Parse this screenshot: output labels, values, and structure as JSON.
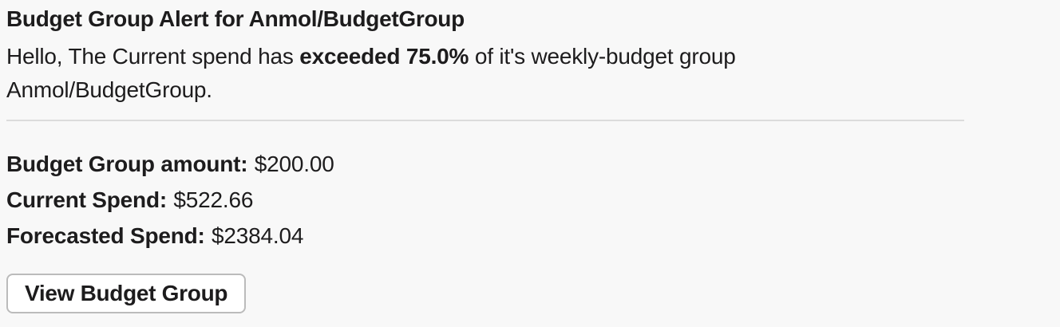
{
  "colors": {
    "background": "#f8f8f8",
    "text": "#1d1c1d",
    "divider": "#dcdcdc",
    "button_border": "#bbbbbb",
    "button_background": "#ffffff"
  },
  "message": {
    "title": "Budget Group Alert for Anmol/BudgetGroup",
    "body": {
      "prefix": "Hello, The Current spend has ",
      "emphasis": "exceeded 75.0%",
      "suffix": " of it's weekly-budget group Anmol/BudgetGroup."
    },
    "fields": [
      {
        "label": "Budget Group amount:",
        "value": "$200.00"
      },
      {
        "label": "Current Spend:",
        "value": "$522.66"
      },
      {
        "label": "Forecasted Spend:",
        "value": "$2384.04"
      }
    ],
    "actions": [
      {
        "label": "View Budget Group"
      }
    ]
  }
}
